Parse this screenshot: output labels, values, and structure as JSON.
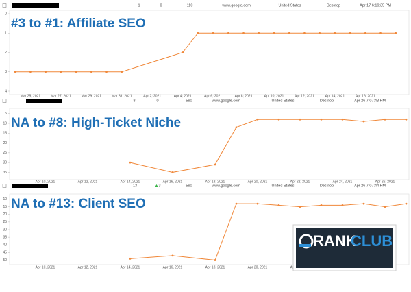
{
  "rows": [
    [
      "1",
      "0",
      "110",
      "www.google.com",
      "United States",
      "Desktop",
      "Apr 17 6:19:35 PM"
    ],
    [
      "8",
      "0",
      "590",
      "www.google.com",
      "United States",
      "Desktop",
      "Apr 26 7:07:43 PM"
    ],
    [
      "13",
      "3",
      "590",
      "www.google.com",
      "United States",
      "Desktop",
      "Apr 26 7:07:44 PM"
    ]
  ],
  "logo": {
    "rank": "RANK",
    "club": "CLUB"
  },
  "chart_data": [
    {
      "type": "line",
      "title": "#3 to #1: Affiliate SEO",
      "color": "#f0883a",
      "x": [
        "2021-03-24",
        "2021-03-25",
        "2021-03-26",
        "2021-03-27",
        "2021-03-28",
        "2021-03-29",
        "2021-03-30",
        "2021-03-31",
        "2021-04-04",
        "2021-04-05",
        "2021-04-06",
        "2021-04-07",
        "2021-04-08",
        "2021-04-09",
        "2021-04-10",
        "2021-04-11",
        "2021-04-12",
        "2021-04-13",
        "2021-04-14",
        "2021-04-15",
        "2021-04-16",
        "2021-04-17",
        "2021-04-18"
      ],
      "values": [
        3,
        3,
        3,
        3,
        3,
        3,
        3,
        3,
        2,
        1,
        1,
        1,
        1,
        1,
        1,
        1,
        1,
        1,
        1,
        1,
        1,
        1,
        1
      ],
      "xlim": [
        "2021-03-23",
        "2021-04-19"
      ],
      "xticks": [
        {
          "value": "2021-03-25",
          "label": "Mar 25, 2021"
        },
        {
          "value": "2021-03-27",
          "label": "Mar 27, 2021"
        },
        {
          "value": "2021-03-29",
          "label": "Mar 29, 2021"
        },
        {
          "value": "2021-03-31",
          "label": "Mar 31, 2021"
        },
        {
          "value": "2021-04-02",
          "label": "Apr 2, 2021"
        },
        {
          "value": "2021-04-04",
          "label": "Apr 4, 2021"
        },
        {
          "value": "2021-04-06",
          "label": "Apr 6, 2021"
        },
        {
          "value": "2021-04-08",
          "label": "Apr 8, 2021"
        },
        {
          "value": "2021-04-10",
          "label": "Apr 10, 2021"
        },
        {
          "value": "2021-04-12",
          "label": "Apr 12, 2021"
        },
        {
          "value": "2021-04-14",
          "label": "Apr 14, 2021"
        },
        {
          "value": "2021-04-16",
          "label": "Apr 16, 2021"
        }
      ],
      "ylim": [
        4,
        0
      ],
      "yticks": [
        0,
        1,
        2,
        3,
        4
      ]
    },
    {
      "type": "line",
      "title": "NA to #8: High-Ticket Niche",
      "color": "#f0883a",
      "x": [
        "2021-04-14",
        "2021-04-16",
        "2021-04-18",
        "2021-04-19",
        "2021-04-20",
        "2021-04-21",
        "2021-04-22",
        "2021-04-23",
        "2021-04-24",
        "2021-04-25",
        "2021-04-26",
        "2021-04-27"
      ],
      "values": [
        30,
        35,
        31,
        12,
        8,
        8,
        8,
        8,
        8,
        9,
        8,
        8
      ],
      "xlim": [
        "2021-04-08",
        "2021-04-27"
      ],
      "xticks": [
        {
          "value": "2021-04-10",
          "label": "Apr 10, 2021"
        },
        {
          "value": "2021-04-12",
          "label": "Apr 12, 2021"
        },
        {
          "value": "2021-04-14",
          "label": "Apr 14, 2021"
        },
        {
          "value": "2021-04-16",
          "label": "Apr 16, 2021"
        },
        {
          "value": "2021-04-18",
          "label": "Apr 18, 2021"
        },
        {
          "value": "2021-04-20",
          "label": "Apr 20, 2021"
        },
        {
          "value": "2021-04-22",
          "label": "Apr 22, 2021"
        },
        {
          "value": "2021-04-24",
          "label": "Apr 24, 2021"
        },
        {
          "value": "2021-04-26",
          "label": "Apr 26, 2021"
        }
      ],
      "ylim": [
        38,
        3
      ],
      "yticks": [
        5,
        10,
        15,
        20,
        25,
        30,
        35
      ]
    },
    {
      "type": "line",
      "title": "NA to #13: Client SEO",
      "color": "#f0883a",
      "x": [
        "2021-04-14",
        "2021-04-16",
        "2021-04-18",
        "2021-04-19",
        "2021-04-20",
        "2021-04-21",
        "2021-04-22",
        "2021-04-23",
        "2021-04-24",
        "2021-04-25",
        "2021-04-26",
        "2021-04-27"
      ],
      "values": [
        49,
        47,
        50,
        13,
        13,
        14,
        15,
        14,
        14,
        13,
        15,
        13
      ],
      "xlim": [
        "2021-04-08",
        "2021-04-27"
      ],
      "xticks": [
        {
          "value": "2021-04-10",
          "label": "Apr 10, 2021"
        },
        {
          "value": "2021-04-12",
          "label": "Apr 12, 2021"
        },
        {
          "value": "2021-04-14",
          "label": "Apr 14, 2021"
        },
        {
          "value": "2021-04-16",
          "label": "Apr 16, 2021"
        },
        {
          "value": "2021-04-18",
          "label": "Apr 18, 2021"
        },
        {
          "value": "2021-04-20",
          "label": "Apr 20, 2021"
        },
        {
          "value": "2021-04-22",
          "label": "Apr 22, 2021"
        },
        {
          "value": "2021-04-24",
          "label": "Apr 24, 2021"
        },
        {
          "value": "2021-04-26",
          "label": "Apr 26, 2021"
        }
      ],
      "ylim": [
        52,
        8
      ],
      "yticks": [
        10,
        15,
        20,
        25,
        30,
        35,
        40,
        45,
        50
      ]
    }
  ]
}
